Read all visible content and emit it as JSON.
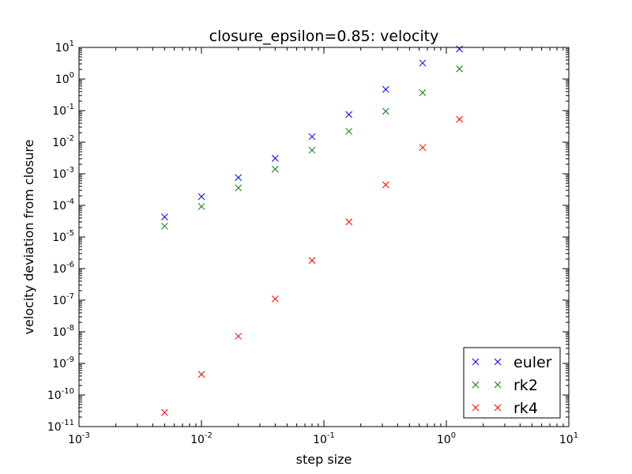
{
  "chart_data": {
    "type": "scatter",
    "title": "closure_epsilon=0.85: velocity",
    "xlabel": "step size",
    "ylabel": "velocity deviation from closure",
    "xscale": "log",
    "yscale": "log",
    "xlim": [
      0.001,
      10
    ],
    "ylim": [
      1e-11,
      10
    ],
    "x_ticks": [
      {
        "base": "10",
        "exp": "-3"
      },
      {
        "base": "10",
        "exp": "-2"
      },
      {
        "base": "10",
        "exp": "-1"
      },
      {
        "base": "10",
        "exp": "0"
      },
      {
        "base": "10",
        "exp": "1"
      }
    ],
    "y_ticks": [
      {
        "base": "10",
        "exp": "-11"
      },
      {
        "base": "10",
        "exp": "-10"
      },
      {
        "base": "10",
        "exp": "-9"
      },
      {
        "base": "10",
        "exp": "-8"
      },
      {
        "base": "10",
        "exp": "-7"
      },
      {
        "base": "10",
        "exp": "-6"
      },
      {
        "base": "10",
        "exp": "-5"
      },
      {
        "base": "10",
        "exp": "-4"
      },
      {
        "base": "10",
        "exp": "-3"
      },
      {
        "base": "10",
        "exp": "-2"
      },
      {
        "base": "10",
        "exp": "-1"
      },
      {
        "base": "10",
        "exp": "0"
      },
      {
        "base": "10",
        "exp": "1"
      }
    ],
    "grid": false,
    "legend_position": "lower-right",
    "marker": "x",
    "series": [
      {
        "name": "euler",
        "color": "#0000ff",
        "x": [
          0.005,
          0.01,
          0.02,
          0.04,
          0.08,
          0.16,
          0.32,
          0.64,
          1.28
        ],
        "y": [
          4.3e-05,
          0.00019,
          0.00076,
          0.0031,
          0.015,
          0.075,
          0.47,
          3.2,
          8.9
        ]
      },
      {
        "name": "rk2",
        "color": "#008000",
        "x": [
          0.005,
          0.01,
          0.02,
          0.04,
          0.08,
          0.16,
          0.32,
          0.64,
          1.28
        ],
        "y": [
          2.2e-05,
          9.2e-05,
          0.00036,
          0.0014,
          0.0056,
          0.022,
          0.095,
          0.37,
          2.1
        ]
      },
      {
        "name": "rk4",
        "color": "#ff0000",
        "x": [
          0.005,
          0.01,
          0.02,
          0.04,
          0.08,
          0.16,
          0.32,
          0.64,
          1.28
        ],
        "y": [
          2.8e-11,
          4.5e-10,
          7.2e-09,
          1.1e-07,
          1.8e-06,
          3e-05,
          0.00045,
          0.0068,
          0.053
        ]
      }
    ]
  }
}
